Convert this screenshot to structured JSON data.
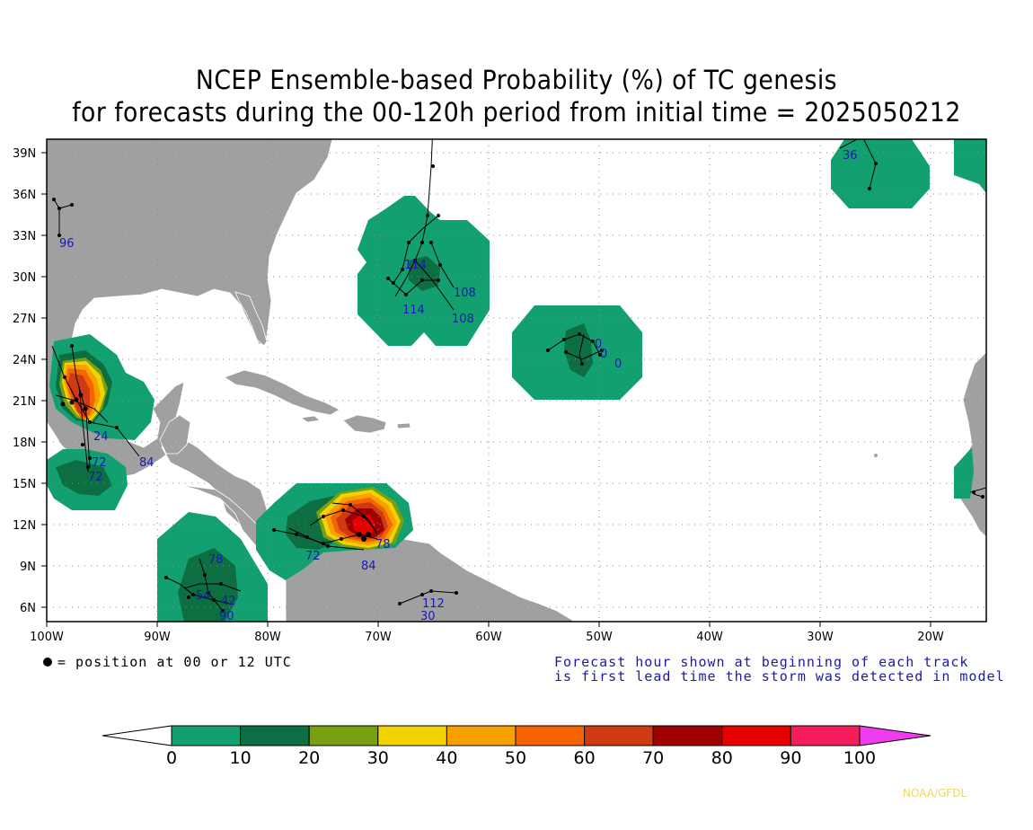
{
  "title_line1": "NCEP Ensemble-based Probability (%) of TC genesis",
  "title_line2": "for forecasts during the 00-120h period from initial time = 2025050212",
  "lat_labels": [
    "39N",
    "36N",
    "33N",
    "30N",
    "27N",
    "24N",
    "21N",
    "18N",
    "15N",
    "12N",
    "9N",
    "6N"
  ],
  "lon_labels": [
    "100W",
    "90W",
    "80W",
    "70W",
    "60W",
    "50W",
    "40W",
    "30W",
    "20W"
  ],
  "legend_position_note": "= position at 00 or 12 UTC",
  "forecast_note_line1": "Forecast hour shown at beginning of each track",
  "forecast_note_line2": "is first lead time the storm was detected in model",
  "colorbar_labels": [
    "0",
    "10",
    "20",
    "30",
    "40",
    "50",
    "60",
    "70",
    "80",
    "90",
    "100"
  ],
  "colorbar_colors": [
    "#ffffff",
    "#13a070",
    "#0d6e42",
    "#78a010",
    "#f2d200",
    "#f7a000",
    "#f56400",
    "#cf3a12",
    "#9e0000",
    "#e60000",
    "#f51e5a",
    "#f03cf0"
  ],
  "credit": "NOAA/GFDL",
  "track_hour_labels": {
    "gulf": [
      "96",
      "24",
      "84",
      "72",
      "72"
    ],
    "atlantic_north": [
      "114",
      "108",
      "114",
      "108"
    ],
    "central_atlantic": [
      "0",
      "0",
      "0"
    ],
    "far_ne": [
      "36"
    ],
    "caribbean": [
      "72",
      "84",
      "78"
    ],
    "central_america": [
      "78",
      "54",
      "42",
      "90"
    ],
    "south_america": [
      "112",
      "30"
    ]
  },
  "colors": {
    "land": "#a0a0a0",
    "ocean": "#ffffff",
    "track": "#000000",
    "hour_label": "#1a1ab0"
  }
}
